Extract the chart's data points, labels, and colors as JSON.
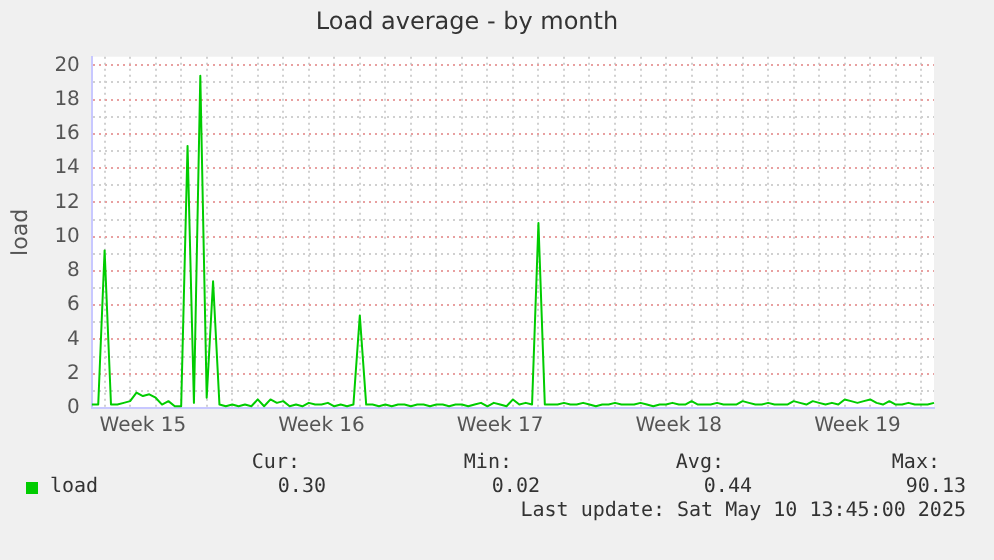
{
  "chart_data": {
    "type": "line",
    "title": "Load average - by month",
    "ylabel": "load",
    "legend": "bottom left",
    "grid": true,
    "marker": "none",
    "line_style": "solid",
    "categories": [
      null,
      null,
      null,
      null,
      null,
      null,
      null,
      null,
      "Week 15",
      null,
      null,
      null,
      null,
      null,
      null,
      null,
      null,
      null,
      null,
      null,
      null,
      null,
      null,
      null,
      null,
      null,
      null,
      null,
      null,
      null,
      null,
      null,
      null,
      null,
      null,
      null,
      "Week 16",
      null,
      null,
      null,
      null,
      null,
      null,
      null,
      null,
      null,
      null,
      null,
      null,
      null,
      null,
      null,
      null,
      null,
      null,
      null,
      null,
      null,
      null,
      null,
      null,
      null,
      null,
      null,
      "Week 17",
      null,
      null,
      null,
      null,
      null,
      null,
      null,
      null,
      null,
      null,
      null,
      null,
      null,
      null,
      null,
      null,
      null,
      null,
      null,
      null,
      null,
      null,
      null,
      null,
      null,
      null,
      null,
      "Week 18",
      null,
      null,
      null,
      null,
      null,
      null,
      null,
      null,
      null,
      null,
      null,
      null,
      null,
      null,
      null,
      null,
      null,
      null,
      null,
      null,
      null,
      null,
      null,
      null,
      null,
      null,
      null,
      "Week 19",
      null,
      null,
      null,
      null,
      null,
      null,
      null,
      null,
      null,
      null,
      null,
      null
    ],
    "ylim": [
      0,
      20.5
    ],
    "yticks": [
      0,
      {
        "value": 1,
        "label": null
      },
      2,
      {
        "value": 3,
        "label": null
      },
      4,
      {
        "value": 5,
        "label": null
      },
      6,
      {
        "value": 7,
        "label": null
      },
      8,
      {
        "value": 9,
        "label": null
      },
      10,
      {
        "value": 11,
        "label": null
      },
      12,
      {
        "value": 13,
        "label": null
      },
      14,
      {
        "value": 15,
        "label": null
      },
      16,
      {
        "value": 17,
        "label": null
      },
      18,
      {
        "value": 19,
        "label": null
      },
      20
    ],
    "annotations": [
      "Cur:",
      "Min:",
      "Avg:",
      "Max:",
      "0.30",
      "0.02",
      "0.44",
      "90.13",
      "Last update: Sat May 10 13:45:00 2025"
    ],
    "series": [
      {
        "name": "load",
        "color": "#00cc00",
        "values": [
          0.2,
          0.2,
          9.2,
          0.2,
          0.2,
          0.3,
          0.4,
          0.9,
          0.7,
          0.8,
          0.6,
          0.2,
          0.4,
          0.1,
          0.1,
          15.3,
          0.3,
          19.4,
          0.6,
          7.4,
          0.2,
          0.1,
          0.2,
          0.1,
          0.2,
          0.1,
          0.5,
          0.1,
          0.5,
          0.3,
          0.4,
          0.1,
          0.2,
          0.1,
          0.3,
          0.2,
          0.2,
          0.3,
          0.1,
          0.2,
          0.1,
          0.2,
          5.4,
          0.2,
          0.2,
          0.1,
          0.2,
          0.1,
          0.2,
          0.2,
          0.1,
          0.2,
          0.2,
          0.1,
          0.2,
          0.2,
          0.1,
          0.2,
          0.2,
          0.1,
          0.2,
          0.3,
          0.1,
          0.3,
          0.2,
          0.1,
          0.5,
          0.2,
          0.3,
          0.2,
          10.8,
          0.2,
          0.2,
          0.2,
          0.3,
          0.2,
          0.2,
          0.3,
          0.2,
          0.1,
          0.2,
          0.2,
          0.3,
          0.2,
          0.2,
          0.2,
          0.3,
          0.2,
          0.1,
          0.2,
          0.2,
          0.3,
          0.2,
          0.2,
          0.4,
          0.2,
          0.2,
          0.2,
          0.3,
          0.2,
          0.2,
          0.2,
          0.4,
          0.3,
          0.2,
          0.2,
          0.3,
          0.2,
          0.2,
          0.2,
          0.4,
          0.3,
          0.2,
          0.4,
          0.3,
          0.2,
          0.3,
          0.2,
          0.5,
          0.4,
          0.3,
          0.4,
          0.5,
          0.3,
          0.2,
          0.4,
          0.2,
          0.2,
          0.3,
          0.2,
          0.2,
          0.2,
          0.3
        ]
      }
    ]
  }
}
